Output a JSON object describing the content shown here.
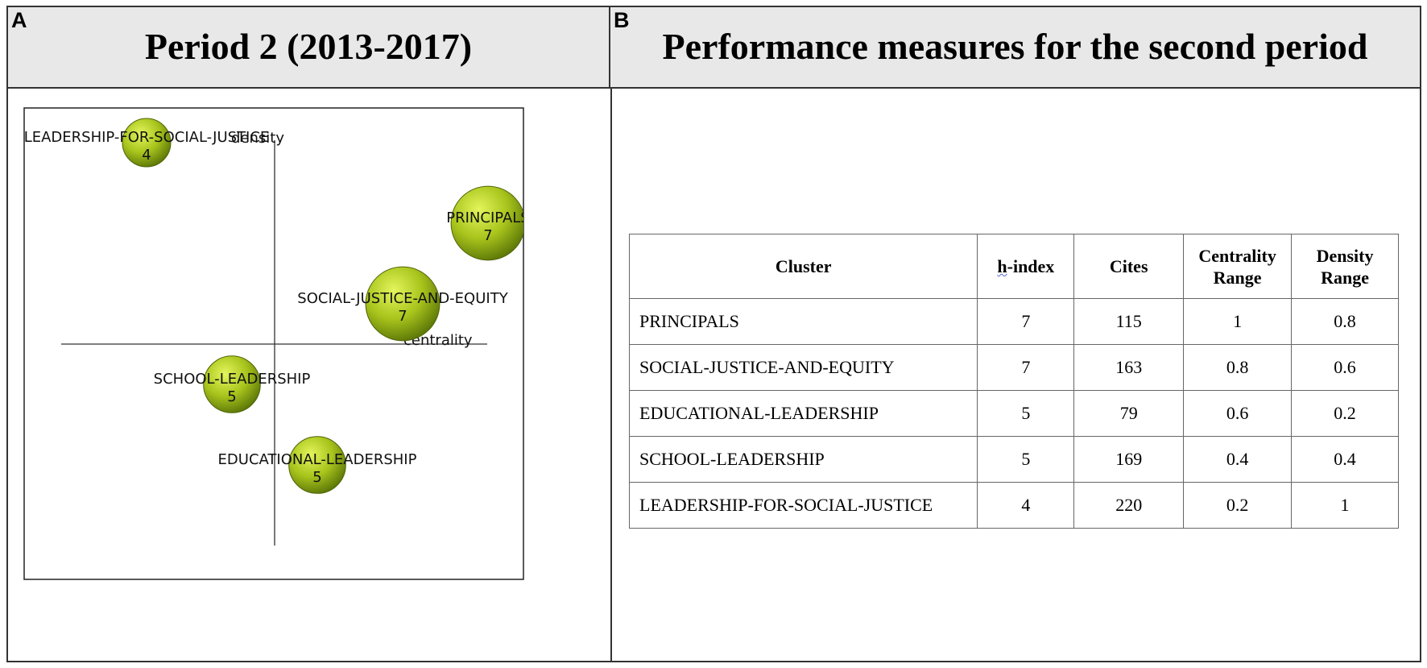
{
  "panel_a": {
    "letter": "A",
    "title": "Period 2 (2013-2017)"
  },
  "panel_b": {
    "letter": "B",
    "title": "Performance measures for the second period"
  },
  "chart_data": {
    "type": "scatter",
    "title": "Period 2 (2013-2017)",
    "xlabel": "centrality",
    "ylabel": "density",
    "grid": false,
    "points": [
      {
        "label": "LEADERSHIP-FOR-SOCIAL-JUSTICE",
        "value": 4,
        "centrality": 0.2,
        "density": 1.0
      },
      {
        "label": "PRINCIPALS",
        "value": 7,
        "centrality": 1.0,
        "density": 0.8
      },
      {
        "label": "SOCIAL-JUSTICE-AND-EQUITY",
        "value": 7,
        "centrality": 0.8,
        "density": 0.6
      },
      {
        "label": "SCHOOL-LEADERSHIP",
        "value": 5,
        "centrality": 0.4,
        "density": 0.4
      },
      {
        "label": "EDUCATIONAL-LEADERSHIP",
        "value": 5,
        "centrality": 0.6,
        "density": 0.2
      }
    ],
    "bubble_color": "#a4c21a"
  },
  "table": {
    "headers": {
      "cluster": "Cluster",
      "h_prefix": "h",
      "h_rest": "-index",
      "cites": "Cites",
      "centrality_line1": "Centrality",
      "centrality_line2": "Range",
      "density_line1": "Density",
      "density_line2": "Range"
    },
    "rows": [
      {
        "cluster": "PRINCIPALS",
        "h_index": "7",
        "cites": "115",
        "centrality": "1",
        "density": "0.8"
      },
      {
        "cluster": "SOCIAL-JUSTICE-AND-EQUITY",
        "h_index": "7",
        "cites": "163",
        "centrality": "0.8",
        "density": "0.6"
      },
      {
        "cluster": "EDUCATIONAL-LEADERSHIP",
        "h_index": "5",
        "cites": "79",
        "centrality": "0.6",
        "density": "0.2"
      },
      {
        "cluster": "SCHOOL-LEADERSHIP",
        "h_index": "5",
        "cites": "169",
        "centrality": "0.4",
        "density": "0.4"
      },
      {
        "cluster": "LEADERSHIP-FOR-SOCIAL-JUSTICE",
        "h_index": "4",
        "cites": "220",
        "centrality": "0.2",
        "density": "1"
      }
    ]
  }
}
